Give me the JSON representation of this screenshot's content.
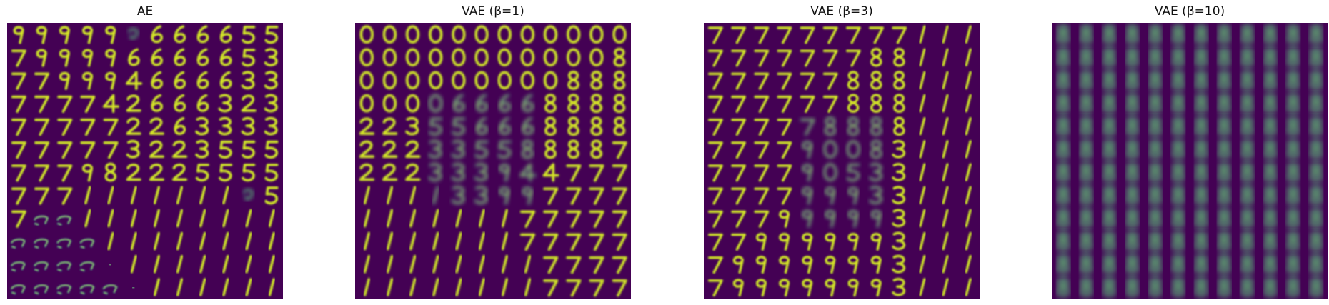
{
  "figure": {
    "panels": [
      {
        "title": "AE",
        "kind": "ae"
      },
      {
        "title": "VAE (β=1)",
        "kind": "vae1"
      },
      {
        "title": "VAE (β=3)",
        "kind": "vae3"
      },
      {
        "title": "VAE (β=10)",
        "kind": "vae10"
      }
    ]
  },
  "colors": {
    "background": "#440154",
    "mid": "#21918c",
    "bright": "#b5de2b",
    "peak": "#fde725"
  }
}
